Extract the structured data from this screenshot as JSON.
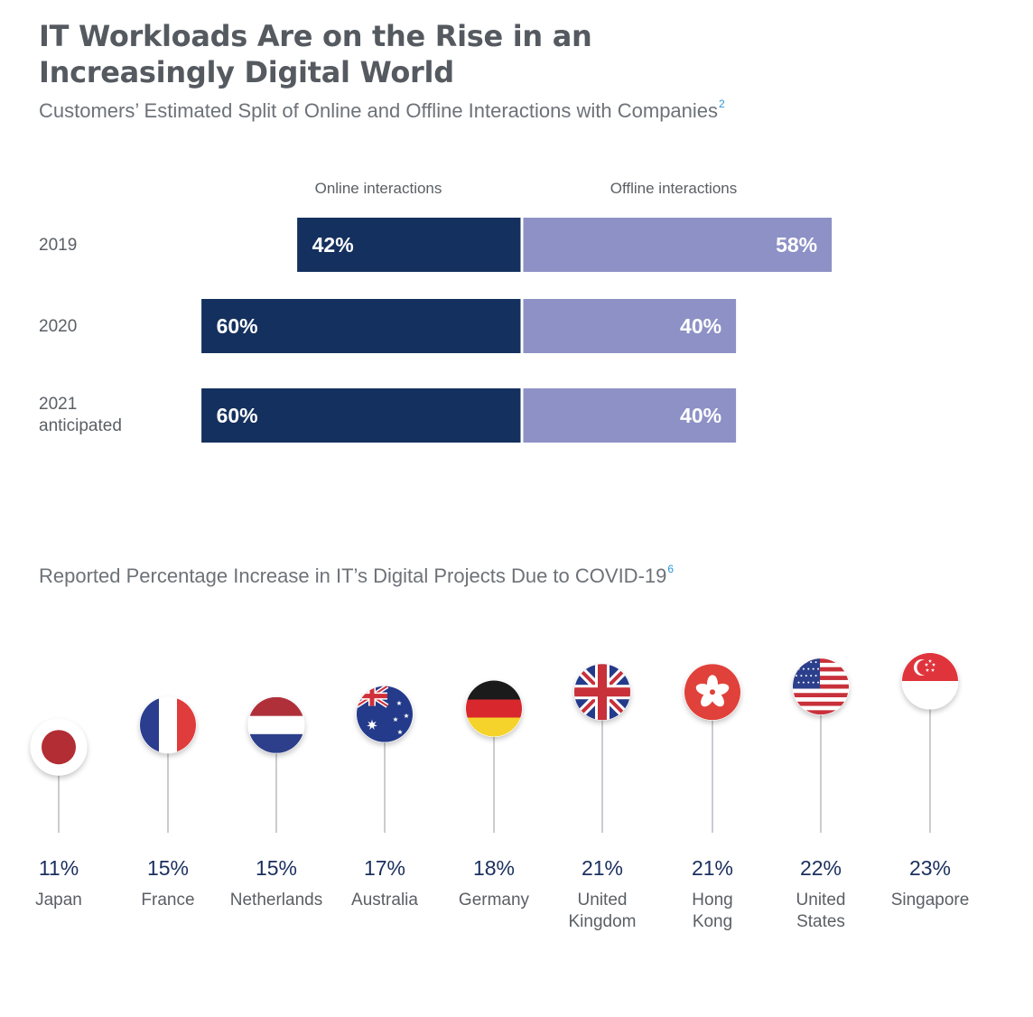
{
  "header": {
    "title_line1": "IT Workloads Are on the Rise in an",
    "title_line2": "Increasingly Digital World",
    "subtitle1": "Customers’ Estimated Split of Online and Offline Interactions with Companies",
    "subtitle1_footnote": "2",
    "subtitle2": "Reported Percentage Increase in IT’s Digital Projects Due to COVID-19",
    "subtitle2_footnote": "6"
  },
  "colors": {
    "online": "#14305e",
    "offline": "#8d91c6",
    "pct_text": "#1a2f5e"
  },
  "chart_data": [
    {
      "type": "bar",
      "orientation": "horizontal-diverging",
      "title": "Customers’ Estimated Split of Online and Offline Interactions with Companies",
      "categories": [
        [
          "2019"
        ],
        [
          "2020"
        ],
        [
          "2021",
          "anticipated"
        ]
      ],
      "series": [
        {
          "name": "Online interactions",
          "values": [
            42,
            60,
            60
          ],
          "labels": [
            "42%",
            "60%",
            "60%"
          ]
        },
        {
          "name": "Offline interactions",
          "values": [
            58,
            40,
            40
          ],
          "labels": [
            "58%",
            "40%",
            "40%"
          ]
        }
      ]
    },
    {
      "type": "scatter",
      "title": "Reported Percentage Increase in IT’s Digital Projects Due to COVID-19",
      "categories": [
        {
          "name": [
            "Japan"
          ],
          "flag": "japan-flag-icon"
        },
        {
          "name": [
            "France"
          ],
          "flag": "france-flag-icon"
        },
        {
          "name": [
            "Netherlands"
          ],
          "flag": "netherlands-flag-icon"
        },
        {
          "name": [
            "Australia"
          ],
          "flag": "australia-flag-icon"
        },
        {
          "name": [
            "Germany"
          ],
          "flag": "germany-flag-icon"
        },
        {
          "name": [
            "United",
            "Kingdom"
          ],
          "flag": "uk-flag-icon"
        },
        {
          "name": [
            "Hong",
            "Kong"
          ],
          "flag": "hong-kong-flag-icon"
        },
        {
          "name": [
            "United",
            "States"
          ],
          "flag": "usa-flag-icon"
        },
        {
          "name": [
            "Singapore"
          ],
          "flag": "singapore-flag-icon"
        }
      ],
      "values": [
        11,
        15,
        15,
        17,
        18,
        21,
        21,
        22,
        23
      ],
      "labels": [
        "11%",
        "15%",
        "15%",
        "17%",
        "18%",
        "21%",
        "21%",
        "22%",
        "23%"
      ]
    }
  ]
}
